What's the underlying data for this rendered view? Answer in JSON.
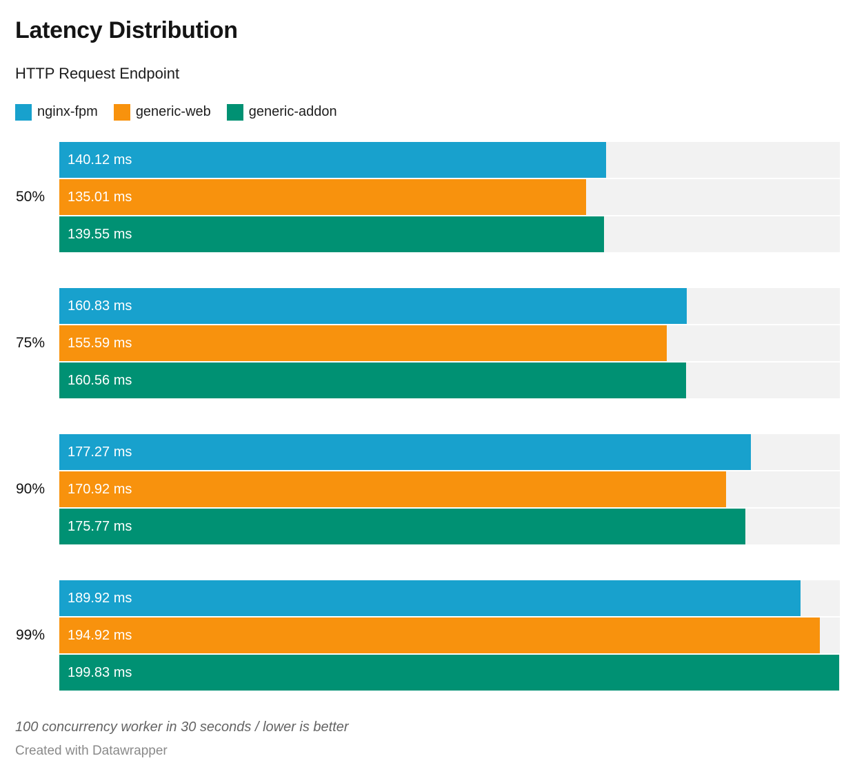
{
  "chart_data": {
    "type": "bar",
    "orientation": "horizontal",
    "title": "Latency Distribution",
    "subtitle": "HTTP Request Endpoint",
    "categories": [
      "50%",
      "75%",
      "90%",
      "99%"
    ],
    "series": [
      {
        "name": "nginx-fpm",
        "color": "#18A1CD",
        "values": [
          140.12,
          160.83,
          177.27,
          189.92
        ]
      },
      {
        "name": "generic-web",
        "color": "#F8920D",
        "values": [
          135.01,
          155.59,
          170.92,
          194.92
        ]
      },
      {
        "name": "generic-addon",
        "color": "#009173",
        "values": [
          139.55,
          160.56,
          175.77,
          199.83
        ]
      }
    ],
    "bar_labels": [
      [
        "140.12 ms",
        "135.01 ms",
        "139.55 ms"
      ],
      [
        "160.83 ms",
        "155.59 ms",
        "160.56 ms"
      ],
      [
        "177.27 ms",
        "170.92 ms",
        "175.77 ms"
      ],
      [
        "189.92 ms",
        "194.92 ms",
        "199.83 ms"
      ]
    ],
    "value_suffix": " ms",
    "value_decimals": 2,
    "xlim": [
      0,
      200
    ],
    "grid": false,
    "legend_position": "top",
    "track_color": "#F2F2F2",
    "bar_label_color": "#FFFFFF"
  },
  "footer": {
    "note": "100 concurrency worker in 30 seconds / lower is better",
    "byline": "Created with Datawrapper"
  }
}
